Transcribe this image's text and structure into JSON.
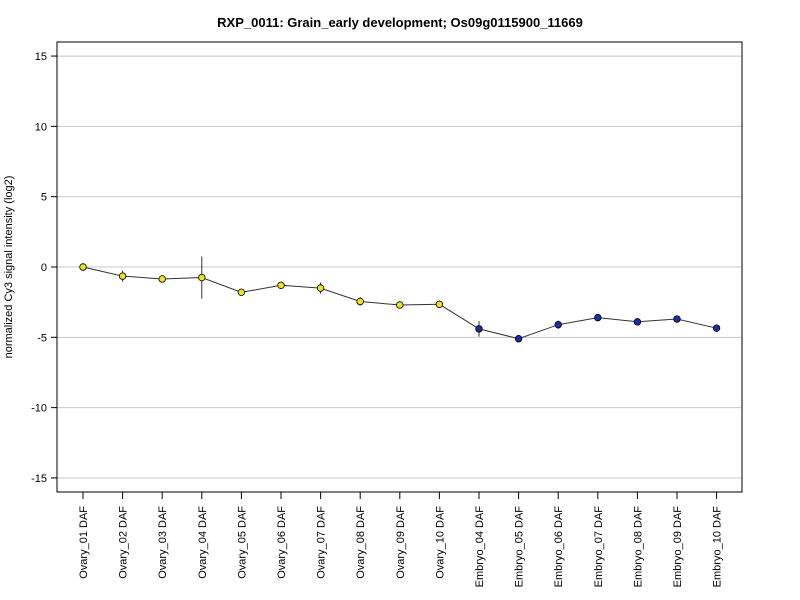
{
  "chart_data": {
    "type": "line",
    "title": "RXP_0011: Grain_early development; Os09g0115900_11669",
    "ylabel": "normalized Cy3 signal intensity (log2)",
    "xlabel": "",
    "ylim": [
      -16,
      16
    ],
    "yticks": [
      -15,
      -10,
      -5,
      0,
      5,
      10,
      15
    ],
    "grid": true,
    "categories": [
      "Ovary_01 DAF",
      "Ovary_02 DAF",
      "Ovary_03 DAF",
      "Ovary_04 DAF",
      "Ovary_05 DAF",
      "Ovary_06 DAF",
      "Ovary_07 DAF",
      "Ovary_08 DAF",
      "Ovary_09 DAF",
      "Ovary_10 DAF",
      "Embryo_04 DAF",
      "Embryo_05 DAF",
      "Embryo_06 DAF",
      "Embryo_07 DAF",
      "Embryo_08 DAF",
      "Embryo_09 DAF",
      "Embryo_10 DAF"
    ],
    "values": [
      0.0,
      -0.65,
      -0.85,
      -0.75,
      -1.8,
      -1.3,
      -1.5,
      -2.45,
      -2.7,
      -2.65,
      -4.4,
      -5.1,
      -4.1,
      -3.6,
      -3.9,
      -3.7,
      -4.35
    ],
    "error": [
      0.15,
      0.4,
      0.15,
      1.5,
      0.15,
      0.25,
      0.4,
      0.3,
      0.15,
      0.25,
      0.55,
      0.2,
      0.3,
      0.25,
      0.15,
      0.15,
      0.15
    ],
    "point_colors": [
      "#f0e020",
      "#f0e020",
      "#f0e020",
      "#f0e020",
      "#f0e020",
      "#f0e020",
      "#f0e020",
      "#f0e020",
      "#f0e020",
      "#f0e020",
      "#1a2ea8",
      "#1a2ea8",
      "#1a2ea8",
      "#1a2ea8",
      "#1a2ea8",
      "#1a2ea8",
      "#1a2ea8"
    ],
    "line_color": "#333333",
    "grid_color": "#c8c8c8"
  }
}
